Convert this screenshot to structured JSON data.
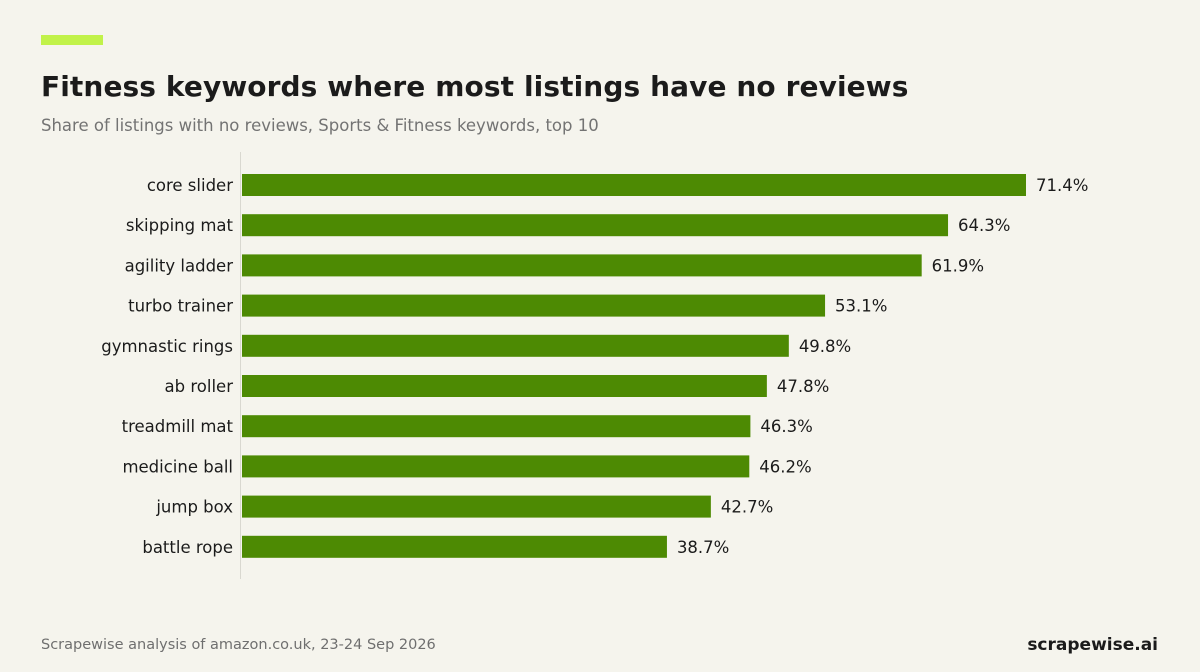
{
  "header": {
    "title": "Fitness keywords where most listings have no reviews",
    "subtitle": "Share of listings with no reviews, Sports & Fitness keywords, top 10"
  },
  "footer": {
    "source": "Scrapewise analysis of amazon.co.uk, 23-24 Sep 2026",
    "brand": "scrapewise.ai"
  },
  "colors": {
    "accent": "#c1f24a",
    "bar": "#4d8a03",
    "background": "#f5f4ed",
    "axis": "#d9d8d0"
  },
  "chart_data": {
    "type": "bar",
    "orientation": "horizontal",
    "categories": [
      "core slider",
      "skipping mat",
      "agility ladder",
      "turbo trainer",
      "gymnastic rings",
      "ab roller",
      "treadmill mat",
      "medicine ball",
      "jump box",
      "battle rope"
    ],
    "values": [
      71.4,
      64.3,
      61.9,
      53.1,
      49.8,
      47.8,
      46.3,
      46.2,
      42.7,
      38.7
    ],
    "value_labels": [
      "71.4%",
      "64.3%",
      "61.9%",
      "53.1%",
      "49.8%",
      "47.8%",
      "46.3%",
      "46.2%",
      "42.7%",
      "38.7%"
    ],
    "title": "Fitness keywords where most listings have no reviews",
    "subtitle": "Share of listings with no reviews, Sports & Fitness keywords, top 10",
    "xlim": [
      0,
      100
    ],
    "grid": false,
    "legend": "none"
  }
}
